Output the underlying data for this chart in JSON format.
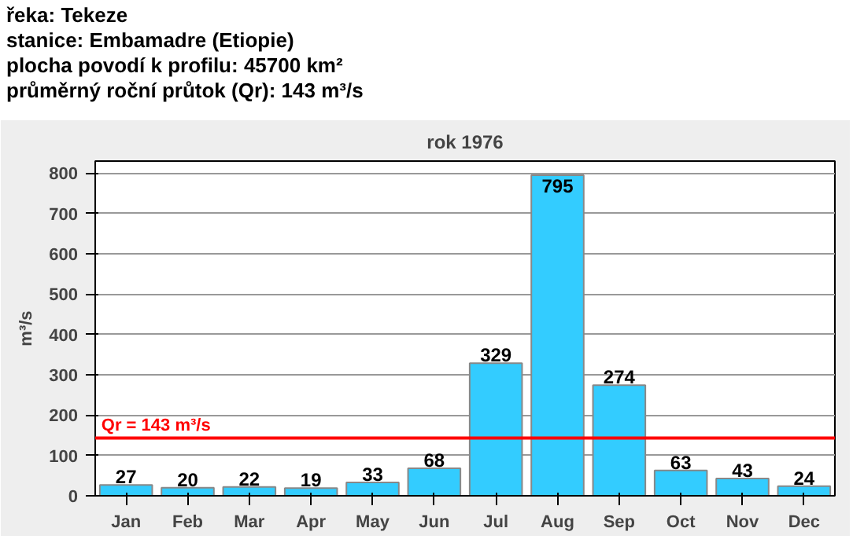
{
  "chart_data": {
    "type": "bar",
    "title": "rok 1976",
    "ylabel": "m³/s",
    "annotations": [
      "řeka: Tekeze",
      "stanice: Embamadre (Etiopie)",
      "plocha povodí k profilu: 45700 km²",
      "průměrný roční průtok (Qr): 143 m³/s"
    ],
    "categories": [
      "Jan",
      "Feb",
      "Mar",
      "Apr",
      "May",
      "Jun",
      "Jul",
      "Aug",
      "Sep",
      "Oct",
      "Nov",
      "Dec"
    ],
    "values": [
      27,
      20,
      22,
      19,
      33,
      68,
      329,
      795,
      274,
      63,
      43,
      24
    ],
    "color": "#33ccff",
    "ylim": [
      0,
      830
    ],
    "yticks": [
      0,
      100,
      200,
      300,
      400,
      500,
      600,
      700,
      800
    ],
    "grid": "y",
    "data_labels": true,
    "ref_lines": [
      {
        "axis": "y",
        "value": 143,
        "label": "Qr = 143 m³/s",
        "color": "#ff0000"
      }
    ]
  }
}
